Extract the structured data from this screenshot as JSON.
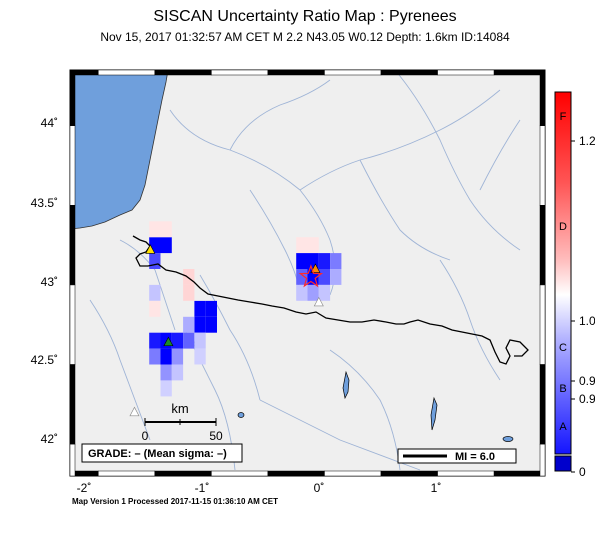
{
  "header": {
    "title": "SISCAN Uncertainty Ratio Map : Pyrenees",
    "subtitle": "Nov 15, 2017 01:32:57 AM CET   M 2.2   N43.05 W0.12   Depth: 1.6km   ID:14084"
  },
  "map": {
    "lon_range": [
      -2.25,
      1.95
    ],
    "lat_range": [
      41.8,
      44.35
    ],
    "lon_ticks": [
      "-2˚",
      "-1˚",
      "0˚",
      "1˚"
    ],
    "lat_ticks": [
      "44˚",
      "43.5˚",
      "43˚",
      "42.5˚",
      "42˚"
    ],
    "epicenter": {
      "lat": 43.05,
      "lon": -0.12
    },
    "colors": {
      "sea": "#6f9fdc",
      "land": "#efefef",
      "river": "#9fb4d6",
      "border": "#000000",
      "epicenter": "#ff2a2a"
    }
  },
  "scale_bar": {
    "unit": "km",
    "ticks": [
      "0",
      "50"
    ]
  },
  "grade_box": {
    "text": "GRADE: – (Mean sigma: –)"
  },
  "mi_box": {
    "text": "MI = 6.0"
  },
  "legend": {
    "letters": [
      "F",
      "D",
      "C",
      "B",
      "A"
    ],
    "values": [
      "1.2",
      "1.0",
      "0.9",
      "0.9",
      "0"
    ]
  },
  "footer": {
    "text": "Map Version 1 Processed 2017-11-15 01:36:10 AM CET"
  },
  "stations": [
    {
      "name": "station-yellow",
      "lat": 43.22,
      "lon": -1.54,
      "color": "#ffe000"
    },
    {
      "name": "station-green",
      "lat": 42.64,
      "lon": -1.38,
      "color": "#1a8c2a"
    },
    {
      "name": "station-orange",
      "lat": 43.1,
      "lon": -0.08,
      "color": "#ff8800"
    },
    {
      "name": "station-grey",
      "lat": 42.89,
      "lon": -0.05,
      "color": "#ffffff"
    },
    {
      "name": "station-grey",
      "lat": 42.2,
      "lon": -1.68,
      "color": "#ffffff"
    }
  ],
  "grid_cells": [
    {
      "lat": 43.25,
      "lon": -1.5,
      "ratio": 1.0
    },
    {
      "lat": 43.25,
      "lon": -1.4,
      "ratio": 1.0
    },
    {
      "lat": 43.15,
      "lon": -1.5,
      "ratio": 0.7
    },
    {
      "lat": 43.35,
      "lon": -1.5,
      "ratio": -0.1
    },
    {
      "lat": 43.35,
      "lon": -1.4,
      "ratio": -0.1
    },
    {
      "lat": 43.05,
      "lon": -1.2,
      "ratio": -0.2
    },
    {
      "lat": 42.95,
      "lon": -1.2,
      "ratio": -0.2
    },
    {
      "lat": 42.95,
      "lon": -1.5,
      "ratio": 0.2
    },
    {
      "lat": 42.85,
      "lon": -1.5,
      "ratio": -0.1
    },
    {
      "lat": 42.85,
      "lon": -1.1,
      "ratio": 1.0
    },
    {
      "lat": 42.85,
      "lon": -1.0,
      "ratio": 1.0
    },
    {
      "lat": 42.75,
      "lon": -1.1,
      "ratio": 1.0
    },
    {
      "lat": 42.75,
      "lon": -1.0,
      "ratio": 1.0
    },
    {
      "lat": 42.75,
      "lon": -1.2,
      "ratio": 0.3
    },
    {
      "lat": 42.65,
      "lon": -1.5,
      "ratio": 0.9
    },
    {
      "lat": 42.65,
      "lon": -1.4,
      "ratio": 1.0
    },
    {
      "lat": 42.65,
      "lon": -1.3,
      "ratio": 0.9
    },
    {
      "lat": 42.65,
      "lon": -1.2,
      "ratio": 0.6
    },
    {
      "lat": 42.65,
      "lon": -1.1,
      "ratio": 0.2
    },
    {
      "lat": 42.55,
      "lon": -1.5,
      "ratio": 0.5
    },
    {
      "lat": 42.55,
      "lon": -1.4,
      "ratio": 1.0
    },
    {
      "lat": 42.55,
      "lon": -1.3,
      "ratio": 0.4
    },
    {
      "lat": 42.55,
      "lon": -1.1,
      "ratio": 0.15
    },
    {
      "lat": 42.45,
      "lon": -1.4,
      "ratio": 0.4
    },
    {
      "lat": 42.45,
      "lon": -1.3,
      "ratio": 0.2
    },
    {
      "lat": 42.35,
      "lon": -1.4,
      "ratio": 0.15
    },
    {
      "lat": 43.25,
      "lon": -0.2,
      "ratio": -0.1
    },
    {
      "lat": 43.25,
      "lon": -0.1,
      "ratio": -0.1
    },
    {
      "lat": 43.15,
      "lon": -0.2,
      "ratio": 1.0
    },
    {
      "lat": 43.15,
      "lon": -0.1,
      "ratio": 1.0
    },
    {
      "lat": 43.15,
      "lon": 0.0,
      "ratio": 0.9
    },
    {
      "lat": 43.15,
      "lon": 0.1,
      "ratio": 0.5
    },
    {
      "lat": 43.05,
      "lon": -0.2,
      "ratio": 0.6
    },
    {
      "lat": 43.05,
      "lon": -0.1,
      "ratio": 1.0
    },
    {
      "lat": 43.05,
      "lon": 0.0,
      "ratio": 0.7
    },
    {
      "lat": 43.05,
      "lon": 0.1,
      "ratio": 0.3
    },
    {
      "lat": 42.95,
      "lon": -0.2,
      "ratio": 0.2
    },
    {
      "lat": 42.95,
      "lon": -0.1,
      "ratio": 0.35
    },
    {
      "lat": 42.95,
      "lon": 0.0,
      "ratio": 0.2
    }
  ]
}
